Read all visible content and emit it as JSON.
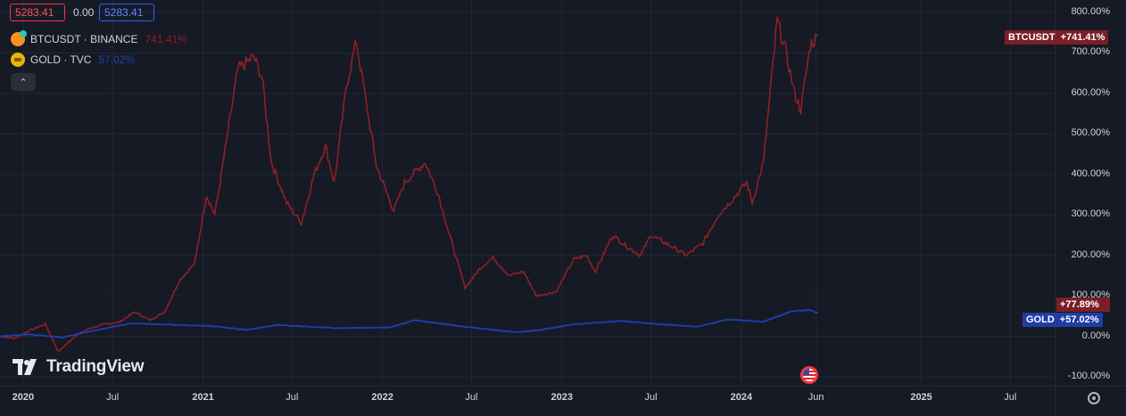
{
  "header": {
    "price_left": "5283.41",
    "price_change": "0.00",
    "price_right": "5283.41"
  },
  "legend": {
    "btc": {
      "name": "BTCUSDT · BINANCE",
      "value": "741.41%",
      "icon": "bitcoin-icon",
      "color": "#8f1f27"
    },
    "gold": {
      "name": "GOLD · TVC",
      "value": "57.02%",
      "icon": "gold-icon",
      "color": "#1f3fb0"
    }
  },
  "collapse_glyph": "⌃",
  "price_tags": {
    "btc_label": "BTCUSDT",
    "btc_value": "+741.41%",
    "btc_secondary": "+77.89%",
    "gold_label": "GOLD",
    "gold_value": "+57.02%"
  },
  "watermark": "TradingView",
  "chart_data": {
    "type": "line",
    "yaxis": {
      "ticks": [
        "800.00%",
        "700.00%",
        "600.00%",
        "500.00%",
        "400.00%",
        "300.00%",
        "200.00%",
        "100.00%",
        "0.00%",
        "-100.00%"
      ],
      "range": [
        -100,
        800
      ],
      "unit": "%"
    },
    "xaxis": {
      "range": [
        "2019-11-15",
        "2025-10-01"
      ],
      "ticks": [
        {
          "label": "2020",
          "date": "2020-01-01",
          "year": true
        },
        {
          "label": "Jul",
          "date": "2020-07-01",
          "year": false
        },
        {
          "label": "2021",
          "date": "2021-01-01",
          "year": true
        },
        {
          "label": "Jul",
          "date": "2021-07-01",
          "year": false
        },
        {
          "label": "2022",
          "date": "2022-01-01",
          "year": true
        },
        {
          "label": "Jul",
          "date": "2022-07-01",
          "year": false
        },
        {
          "label": "2023",
          "date": "2023-01-01",
          "year": true
        },
        {
          "label": "Jul",
          "date": "2023-07-01",
          "year": false
        },
        {
          "label": "2024",
          "date": "2024-01-01",
          "year": true
        },
        {
          "label": "Jun",
          "date": "2024-06-01",
          "year": false
        },
        {
          "label": "2025",
          "date": "2025-01-01",
          "year": true
        },
        {
          "label": "Jul",
          "date": "2025-07-01",
          "year": false
        }
      ]
    },
    "grid": true,
    "series": [
      {
        "name": "BTCUSDT · BINANCE",
        "color": "#8f1f27",
        "points": [
          [
            "2019-11-15",
            0
          ],
          [
            "2019-12-15",
            -5
          ],
          [
            "2020-01-15",
            15
          ],
          [
            "2020-02-15",
            30
          ],
          [
            "2020-03-13",
            -38
          ],
          [
            "2020-04-15",
            0
          ],
          [
            "2020-05-15",
            20
          ],
          [
            "2020-06-15",
            30
          ],
          [
            "2020-07-15",
            35
          ],
          [
            "2020-08-15",
            60
          ],
          [
            "2020-09-15",
            40
          ],
          [
            "2020-10-15",
            60
          ],
          [
            "2020-11-15",
            140
          ],
          [
            "2020-12-15",
            180
          ],
          [
            "2021-01-08",
            350
          ],
          [
            "2021-01-25",
            300
          ],
          [
            "2021-02-20",
            500
          ],
          [
            "2021-03-13",
            660
          ],
          [
            "2021-04-14",
            690
          ],
          [
            "2021-05-01",
            640
          ],
          [
            "2021-05-20",
            430
          ],
          [
            "2021-06-20",
            330
          ],
          [
            "2021-07-20",
            280
          ],
          [
            "2021-08-15",
            400
          ],
          [
            "2021-09-07",
            470
          ],
          [
            "2021-09-25",
            380
          ],
          [
            "2021-10-20",
            620
          ],
          [
            "2021-11-09",
            730
          ],
          [
            "2021-12-01",
            560
          ],
          [
            "2021-12-20",
            420
          ],
          [
            "2022-01-24",
            310
          ],
          [
            "2022-02-15",
            380
          ],
          [
            "2022-03-29",
            430
          ],
          [
            "2022-04-25",
            350
          ],
          [
            "2022-05-15",
            260
          ],
          [
            "2022-06-18",
            120
          ],
          [
            "2022-07-20",
            170
          ],
          [
            "2022-08-14",
            195
          ],
          [
            "2022-09-15",
            150
          ],
          [
            "2022-10-15",
            160
          ],
          [
            "2022-11-10",
            100
          ],
          [
            "2022-12-20",
            110
          ],
          [
            "2023-01-25",
            190
          ],
          [
            "2023-02-20",
            200
          ],
          [
            "2023-03-10",
            160
          ],
          [
            "2023-04-14",
            250
          ],
          [
            "2023-05-15",
            220
          ],
          [
            "2023-06-10",
            200
          ],
          [
            "2023-07-01",
            250
          ],
          [
            "2023-08-15",
            220
          ],
          [
            "2023-09-11",
            200
          ],
          [
            "2023-10-15",
            230
          ],
          [
            "2023-11-15",
            300
          ],
          [
            "2023-12-15",
            340
          ],
          [
            "2024-01-12",
            380
          ],
          [
            "2024-01-23",
            330
          ],
          [
            "2024-02-15",
            430
          ],
          [
            "2024-03-14",
            780
          ],
          [
            "2024-04-01",
            700
          ],
          [
            "2024-04-18",
            600
          ],
          [
            "2024-05-01",
            560
          ],
          [
            "2024-05-20",
            720
          ],
          [
            "2024-06-05",
            741.41
          ]
        ]
      },
      {
        "name": "GOLD · TVC",
        "color": "#1f3fb0",
        "points": [
          [
            "2019-11-15",
            0
          ],
          [
            "2020-01-15",
            5
          ],
          [
            "2020-03-20",
            -3
          ],
          [
            "2020-05-15",
            12
          ],
          [
            "2020-08-07",
            32
          ],
          [
            "2020-11-15",
            28
          ],
          [
            "2021-01-15",
            26
          ],
          [
            "2021-03-30",
            16
          ],
          [
            "2021-06-01",
            28
          ],
          [
            "2021-09-30",
            20
          ],
          [
            "2022-01-15",
            22
          ],
          [
            "2022-03-08",
            40
          ],
          [
            "2022-06-15",
            24
          ],
          [
            "2022-09-28",
            10
          ],
          [
            "2022-11-15",
            15
          ],
          [
            "2023-01-25",
            30
          ],
          [
            "2023-05-04",
            38
          ],
          [
            "2023-07-15",
            30
          ],
          [
            "2023-10-05",
            24
          ],
          [
            "2023-12-04",
            42
          ],
          [
            "2024-02-14",
            36
          ],
          [
            "2024-04-12",
            62
          ],
          [
            "2024-05-20",
            65
          ],
          [
            "2024-06-05",
            57.02
          ]
        ]
      }
    ]
  }
}
